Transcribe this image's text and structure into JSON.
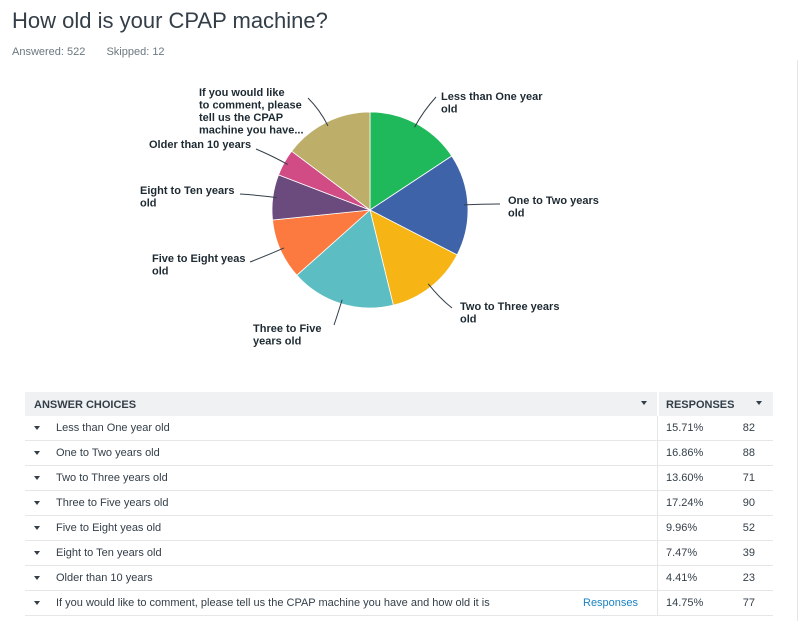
{
  "question": {
    "title": "How old is your CPAP machine?",
    "answered": "Answered: 522",
    "skipped": "Skipped: 12"
  },
  "chart_data": {
    "type": "pie",
    "title": "",
    "slices": [
      {
        "label": "Less than One year old",
        "value": 15.71,
        "color": "#1fb85b"
      },
      {
        "label": "One to Two years old",
        "value": 16.86,
        "color": "#3e63a8"
      },
      {
        "label": "Two to Three years old",
        "value": 13.6,
        "color": "#f6b514"
      },
      {
        "label": "Three to Five years old",
        "value": 17.24,
        "color": "#5cbdc3"
      },
      {
        "label": "Five to Eight yeas old",
        "value": 9.96,
        "color": "#fc7a40"
      },
      {
        "label": "Eight to Ten years old",
        "value": 7.47,
        "color": "#6b4a7e"
      },
      {
        "label": "Older than 10 years",
        "value": 4.41,
        "color": "#d14b84"
      },
      {
        "label": "If you would like to comment, please tell us the CPAP machine you have...",
        "value": 14.75,
        "color": "#bdae6a"
      }
    ]
  },
  "table": {
    "headers": {
      "choices": "ANSWER CHOICES",
      "responses": "RESPONSES"
    },
    "rows": [
      {
        "choice": "Less than One year old",
        "percent": "15.71%",
        "count": "82"
      },
      {
        "choice": "One to Two years old",
        "percent": "16.86%",
        "count": "88"
      },
      {
        "choice": "Two to Three years old",
        "percent": "13.60%",
        "count": "71"
      },
      {
        "choice": "Three to Five years old",
        "percent": "17.24%",
        "count": "90"
      },
      {
        "choice": "Five to Eight yeas old",
        "percent": "9.96%",
        "count": "52"
      },
      {
        "choice": "Eight to Ten years old",
        "percent": "7.47%",
        "count": "39"
      },
      {
        "choice": "Older than 10 years",
        "percent": "4.41%",
        "count": "23"
      },
      {
        "choice": "If you would like to comment, please tell us the CPAP machine you have and how old it is",
        "percent": "14.75%",
        "count": "77",
        "link": "Responses"
      }
    ]
  }
}
